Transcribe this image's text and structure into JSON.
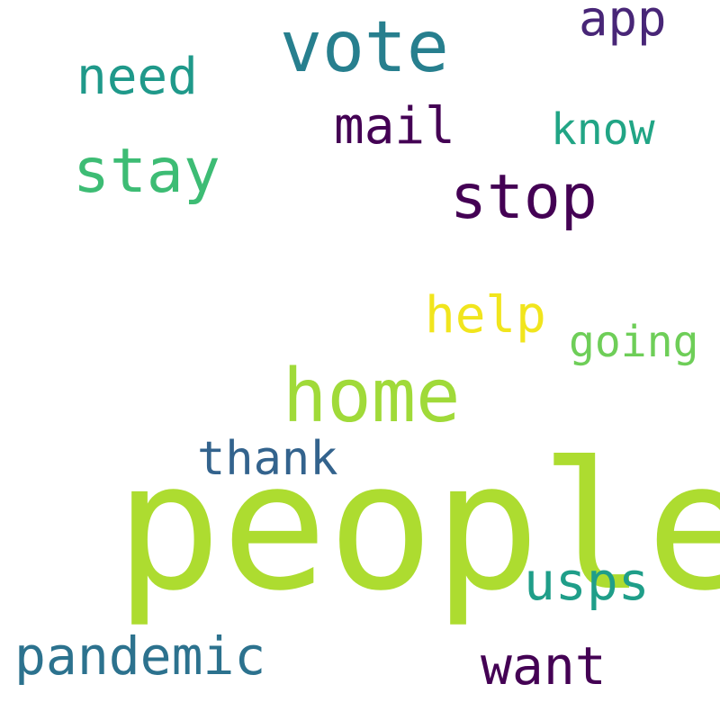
{
  "words": [
    {
      "key": "people",
      "text": "people",
      "color": "#addc30"
    },
    {
      "key": "vote",
      "text": "vote",
      "color": "#277f8e"
    },
    {
      "key": "home",
      "text": "home",
      "color": "#a0da39"
    },
    {
      "key": "stay",
      "text": "stay",
      "color": "#3dbc74"
    },
    {
      "key": "stop",
      "text": "stop",
      "color": "#440154"
    },
    {
      "key": "need",
      "text": "need",
      "color": "#1f998a"
    },
    {
      "key": "app",
      "text": "app",
      "color": "#482677"
    },
    {
      "key": "mail",
      "text": "mail",
      "color": "#440154"
    },
    {
      "key": "know",
      "text": "know",
      "color": "#21a585"
    },
    {
      "key": "help",
      "text": "help",
      "color": "#f1e51d"
    },
    {
      "key": "going",
      "text": "going",
      "color": "#6ece58"
    },
    {
      "key": "thank",
      "text": "thank",
      "color": "#33638d"
    },
    {
      "key": "usps",
      "text": "usps",
      "color": "#1f9e89"
    },
    {
      "key": "pandemic",
      "text": "pandemic",
      "color": "#2c728e"
    },
    {
      "key": "want",
      "text": "want",
      "color": "#440154"
    }
  ]
}
